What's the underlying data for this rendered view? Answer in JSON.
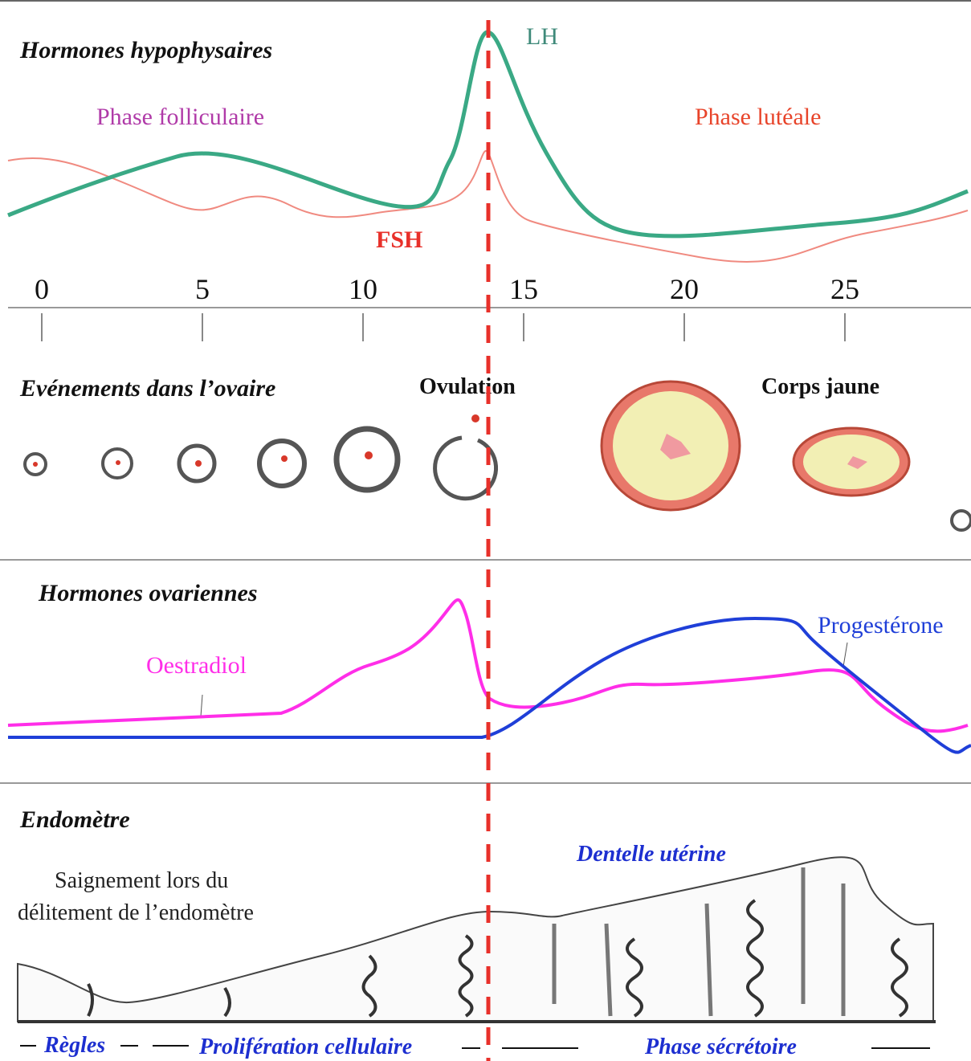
{
  "pituitary": {
    "title": "Hormones hypophysaires",
    "phase_follicular": "Phase folliculaire",
    "phase_luteal": "Phase lutéale",
    "lh": "LH",
    "fsh": "FSH"
  },
  "day_axis": {
    "ticks": [
      0,
      5,
      10,
      15,
      20,
      25
    ]
  },
  "ovary": {
    "title": "Evénements dans l’ovaire",
    "ovulation": "Ovulation",
    "corpus_luteum": "Corps jaune"
  },
  "ovarian_hormones": {
    "title": "Hormones ovariennes",
    "estradiol": "Oestradiol",
    "progesterone": "Progestérone"
  },
  "endometrium": {
    "title": "Endomètre",
    "bleeding": [
      "Saignement lors du",
      "délitement de l’endomètre"
    ],
    "lace": "Dentelle utérine",
    "phases": [
      "Règles",
      "Prolifération cellulaire",
      "Phase sécrétoire"
    ]
  }
}
